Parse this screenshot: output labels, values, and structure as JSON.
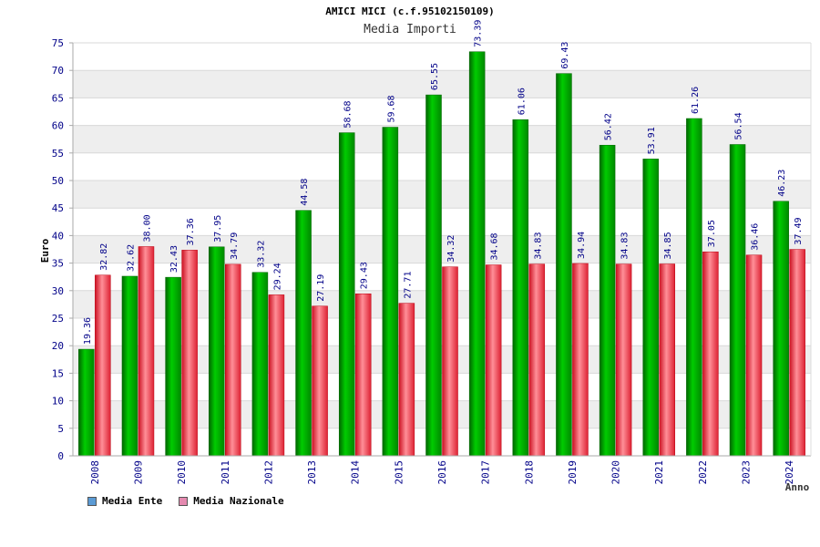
{
  "chart_data": {
    "type": "bar",
    "title": "AMICI MICI (c.f.95102150109)",
    "subtitle": "Media Importi",
    "ylabel": "Euro",
    "xlabel": "Anno",
    "ylim": [
      0,
      75
    ],
    "yticks": [
      "0",
      "5",
      "10",
      "15",
      "20",
      "25",
      "30",
      "35",
      "40",
      "45",
      "50",
      "55",
      "60",
      "65",
      "70",
      "75"
    ],
    "categories": [
      "2008",
      "2009",
      "2010",
      "2011",
      "2012",
      "2013",
      "2014",
      "2015",
      "2016",
      "2017",
      "2018",
      "2019",
      "2020",
      "2021",
      "2022",
      "2023",
      "2024"
    ],
    "series": [
      {
        "name": "Media Ente",
        "color": "#00aa00",
        "values": [
          19.36,
          32.62,
          32.43,
          37.95,
          33.32,
          44.58,
          58.68,
          59.68,
          65.55,
          73.39,
          61.06,
          69.43,
          56.42,
          53.91,
          61.26,
          56.54,
          46.23
        ],
        "labels": [
          "19.36",
          "32.62",
          "32.43",
          "37.95",
          "33.32",
          "44.58",
          "58.68",
          "59.68",
          "65.55",
          "73.39",
          "61.06",
          "69.43",
          "56.42",
          "53.91",
          "61.26",
          "56.54",
          "46.23"
        ]
      },
      {
        "name": "Media Nazionale",
        "color": "#ee3344",
        "values": [
          32.82,
          38.0,
          37.36,
          34.79,
          29.24,
          27.19,
          29.43,
          27.71,
          34.32,
          34.68,
          34.83,
          34.94,
          34.83,
          34.85,
          37.05,
          36.46,
          37.49
        ],
        "labels": [
          "32.82",
          "38.00",
          "37.36",
          "34.79",
          "29.24",
          "27.19",
          "29.43",
          "27.71",
          "34.32",
          "34.68",
          "34.83",
          "34.94",
          "34.83",
          "34.85",
          "37.05",
          "36.46",
          "37.49"
        ]
      }
    ],
    "legend": [
      {
        "label": "Media Ente",
        "color": "#5b9bd5"
      },
      {
        "label": "Media Nazionale",
        "color": "#e58ab0"
      }
    ],
    "grid": true,
    "legend_position": "bottom-left"
  }
}
